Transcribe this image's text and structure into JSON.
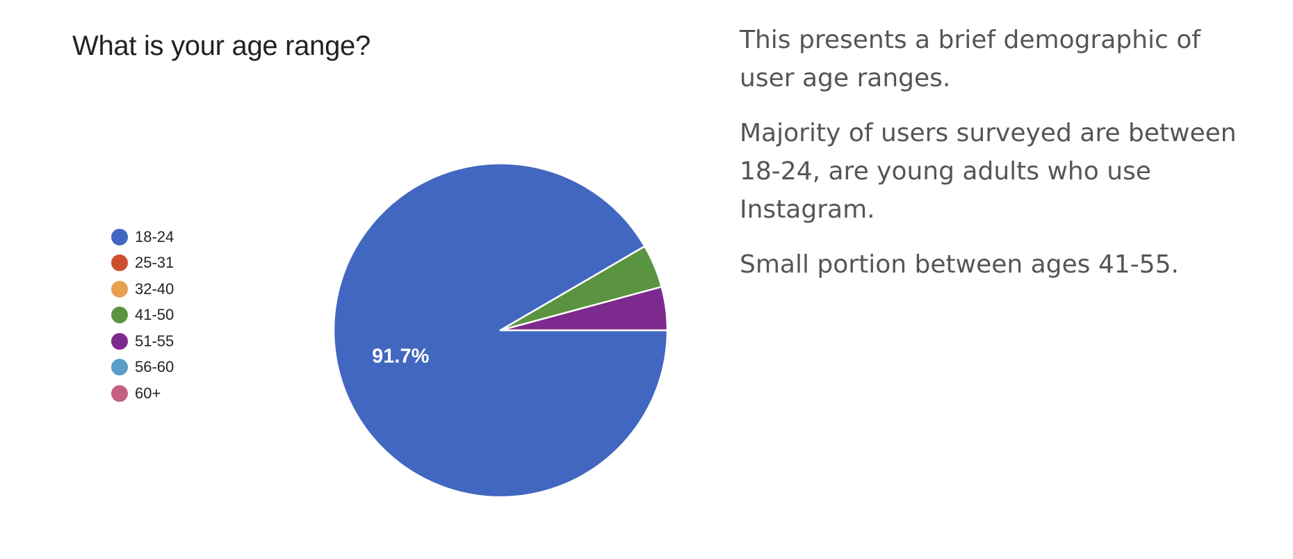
{
  "chart_data": {
    "type": "pie",
    "title": "What is your age range?",
    "legend_position": "left",
    "categories": [
      "18-24",
      "25-31",
      "32-40",
      "41-50",
      "51-55",
      "56-60",
      "60+"
    ],
    "values": [
      91.7,
      0,
      0,
      4.2,
      4.2,
      0,
      0
    ],
    "colors": [
      "#4267c0",
      "#cc4e30",
      "#e9a04e",
      "#5b9440",
      "#7d2a8f",
      "#5a9dc6",
      "#c45f80"
    ],
    "labels": [
      "91.7%",
      "",
      "",
      "",
      "",
      "",
      ""
    ]
  },
  "description": {
    "paragraphs": [
      "This presents a brief demographic of user age ranges.",
      "Majority of users surveyed are between 18-24, are young adults who use Instagram.",
      "Small portion between ages 41-55."
    ]
  }
}
